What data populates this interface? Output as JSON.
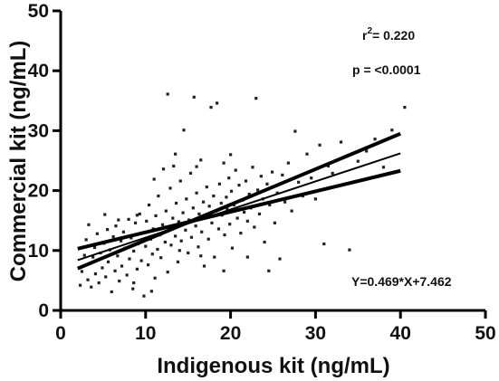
{
  "chart_data": {
    "type": "scatter",
    "xlabel": "Indigenous kit (ng/mL)",
    "ylabel": "Commercial kit (ng/mL)",
    "xlim": [
      0,
      50
    ],
    "ylim": [
      0,
      50
    ],
    "xticks": [
      "0",
      "10",
      "20",
      "30",
      "40",
      "50"
    ],
    "yticks": [
      "0",
      "10",
      "20",
      "30",
      "40",
      "50"
    ],
    "grid": false,
    "annotations": {
      "r2_prefix": "r",
      "r2_sup": "2",
      "r2_value": "= 0.220",
      "p_value": "p = <0.0001",
      "equation": "Y=0.469*X+7.462"
    },
    "regression": {
      "slope": 0.469,
      "intercept": 7.462,
      "x_range": [
        2,
        40
      ],
      "ci_upper": [
        [
          2,
          7.0
        ],
        [
          40,
          29.5
        ]
      ],
      "ci_lower": [
        [
          2,
          10.3
        ],
        [
          40,
          23.3
        ]
      ]
    },
    "points": [
      [
        2.3,
        4.2
      ],
      [
        2.5,
        6.5
      ],
      [
        2.8,
        9.2
      ],
      [
        3.0,
        11.8
      ],
      [
        3.2,
        5.1
      ],
      [
        3.4,
        7.8
      ],
      [
        3.6,
        3.9
      ],
      [
        3.8,
        8.9
      ],
      [
        4.0,
        10.5
      ],
      [
        4.1,
        6.1
      ],
      [
        4.3,
        12.8
      ],
      [
        4.5,
        4.6
      ],
      [
        4.7,
        9.6
      ],
      [
        4.9,
        7.1
      ],
      [
        5.1,
        11.2
      ],
      [
        5.3,
        5.6
      ],
      [
        5.5,
        13.5
      ],
      [
        5.6,
        8.1
      ],
      [
        5.8,
        10.1
      ],
      [
        6.0,
        3.1
      ],
      [
        6.2,
        12.3
      ],
      [
        6.4,
        6.6
      ],
      [
        6.5,
        14.1
      ],
      [
        6.7,
        9.1
      ],
      [
        6.9,
        4.9
      ],
      [
        7.1,
        11.6
      ],
      [
        7.2,
        7.4
      ],
      [
        7.4,
        13.1
      ],
      [
        7.6,
        10.4
      ],
      [
        7.8,
        5.9
      ],
      [
        8.0,
        15.2
      ],
      [
        8.1,
        8.6
      ],
      [
        8.3,
        12.1
      ],
      [
        8.5,
        3.6
      ],
      [
        8.6,
        9.9
      ],
      [
        8.8,
        14.6
      ],
      [
        9.0,
        6.9
      ],
      [
        9.1,
        11.1
      ],
      [
        9.3,
        16.1
      ],
      [
        9.5,
        8.3
      ],
      [
        9.6,
        12.9
      ],
      [
        9.8,
        2.4
      ],
      [
        10.0,
        10.7
      ],
      [
        10.1,
        14.9
      ],
      [
        10.3,
        7.6
      ],
      [
        10.4,
        17.6
      ],
      [
        10.6,
        11.9
      ],
      [
        10.8,
        9.4
      ],
      [
        10.9,
        13.6
      ],
      [
        11.1,
        5.4
      ],
      [
        11.2,
        15.8
      ],
      [
        11.4,
        10.2
      ],
      [
        11.5,
        19.1
      ],
      [
        11.7,
        12.6
      ],
      [
        11.8,
        8.8
      ],
      [
        12.0,
        14.3
      ],
      [
        12.1,
        23.6
      ],
      [
        12.3,
        11.4
      ],
      [
        12.4,
        16.6
      ],
      [
        12.6,
        6.4
      ],
      [
        12.7,
        13.9
      ],
      [
        12.9,
        20.4
      ],
      [
        13.0,
        10.9
      ],
      [
        13.2,
        15.4
      ],
      [
        13.3,
        24.1
      ],
      [
        13.5,
        12.4
      ],
      [
        13.6,
        17.9
      ],
      [
        13.8,
        8.1
      ],
      [
        13.9,
        14.8
      ],
      [
        14.1,
        21.6
      ],
      [
        14.2,
        11.6
      ],
      [
        14.4,
        16.3
      ],
      [
        14.5,
        30.1
      ],
      [
        14.7,
        13.4
      ],
      [
        14.8,
        18.6
      ],
      [
        15.0,
        9.6
      ],
      [
        15.1,
        15.1
      ],
      [
        15.3,
        22.9
      ],
      [
        15.4,
        12.2
      ],
      [
        15.6,
        17.1
      ],
      [
        15.7,
        35.6
      ],
      [
        15.9,
        14.1
      ],
      [
        16.0,
        19.6
      ],
      [
        16.2,
        10.6
      ],
      [
        16.3,
        16.1
      ],
      [
        16.5,
        25.1
      ],
      [
        16.6,
        13.1
      ],
      [
        16.8,
        18.1
      ],
      [
        16.9,
        7.4
      ],
      [
        17.1,
        15.6
      ],
      [
        17.2,
        20.6
      ],
      [
        17.4,
        11.9
      ],
      [
        17.5,
        17.4
      ],
      [
        17.7,
        33.9
      ],
      [
        17.8,
        14.6
      ],
      [
        18.0,
        19.1
      ],
      [
        18.1,
        8.9
      ],
      [
        18.3,
        16.6
      ],
      [
        18.4,
        34.6
      ],
      [
        18.6,
        13.6
      ],
      [
        18.7,
        21.1
      ],
      [
        18.9,
        17.9
      ],
      [
        19.0,
        15.9
      ],
      [
        19.2,
        24.6
      ],
      [
        19.3,
        12.6
      ],
      [
        19.5,
        18.9
      ],
      [
        19.6,
        16.9
      ],
      [
        19.8,
        22.1
      ],
      [
        19.9,
        14.4
      ],
      [
        20.1,
        19.9
      ],
      [
        20.2,
        10.4
      ],
      [
        20.4,
        17.6
      ],
      [
        20.6,
        23.4
      ],
      [
        20.8,
        15.4
      ],
      [
        21.0,
        20.9
      ],
      [
        21.2,
        12.9
      ],
      [
        21.4,
        18.4
      ],
      [
        21.6,
        16.4
      ],
      [
        21.8,
        21.6
      ],
      [
        22.0,
        14.9
      ],
      [
        22.2,
        19.4
      ],
      [
        22.4,
        17.1
      ],
      [
        22.6,
        23.9
      ],
      [
        22.8,
        13.9
      ],
      [
        23.0,
        35.4
      ],
      [
        23.2,
        20.1
      ],
      [
        23.4,
        16.1
      ],
      [
        23.6,
        22.4
      ],
      [
        23.8,
        18.6
      ],
      [
        24.0,
        11.4
      ],
      [
        24.3,
        21.1
      ],
      [
        24.6,
        17.6
      ],
      [
        24.9,
        23.1
      ],
      [
        25.2,
        14.6
      ],
      [
        25.5,
        19.6
      ],
      [
        25.8,
        8.6
      ],
      [
        26.1,
        22.6
      ],
      [
        26.4,
        18.1
      ],
      [
        26.8,
        24.6
      ],
      [
        27.2,
        16.6
      ],
      [
        27.6,
        29.9
      ],
      [
        28.0,
        21.4
      ],
      [
        28.5,
        19.1
      ],
      [
        29.0,
        26.1
      ],
      [
        29.5,
        22.1
      ],
      [
        30.0,
        18.6
      ],
      [
        30.5,
        27.6
      ],
      [
        31.0,
        11.1
      ],
      [
        31.5,
        24.1
      ],
      [
        32.0,
        22.9
      ],
      [
        33.0,
        28.1
      ],
      [
        34.0,
        10.1
      ],
      [
        35.0,
        24.9
      ],
      [
        36.0,
        26.6
      ],
      [
        37.0,
        28.6
      ],
      [
        38.0,
        23.9
      ],
      [
        39.0,
        30.1
      ],
      [
        40.5,
        33.9
      ],
      [
        6.8,
        15.1
      ],
      [
        9.0,
        15.9
      ],
      [
        11.0,
        21.9
      ],
      [
        13.5,
        26.1
      ],
      [
        12.6,
        36.1
      ],
      [
        5.2,
        16.0
      ],
      [
        3.3,
        14.3
      ],
      [
        16.0,
        24.0
      ],
      [
        20.0,
        26.0
      ],
      [
        14.0,
        10.0
      ],
      [
        16.5,
        9.1
      ],
      [
        19.2,
        6.6
      ],
      [
        22.0,
        8.9
      ],
      [
        24.5,
        6.6
      ],
      [
        8.6,
        4.6
      ],
      [
        10.7,
        3.2
      ]
    ]
  }
}
